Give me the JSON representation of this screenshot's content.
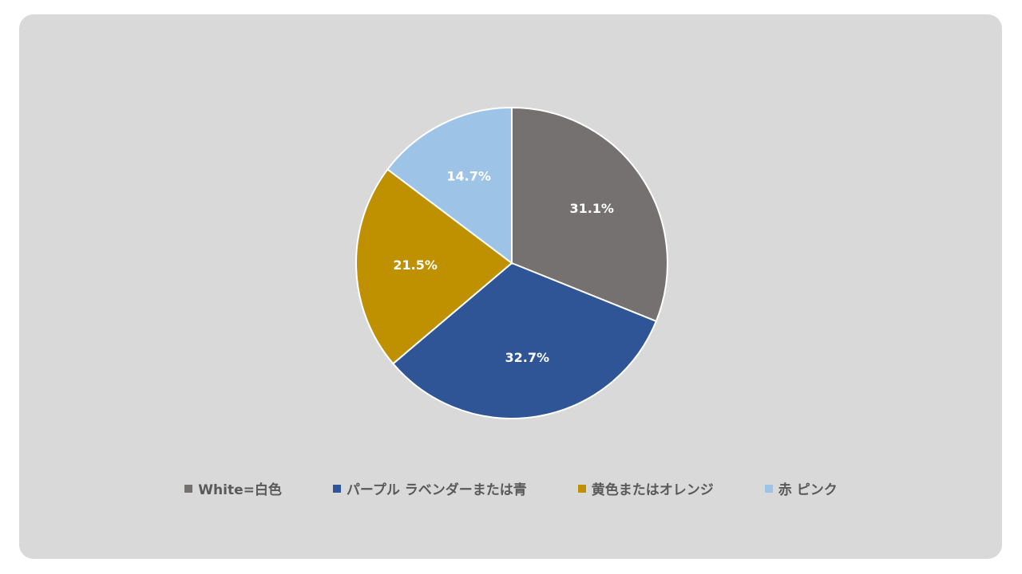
{
  "chart_data": {
    "type": "pie",
    "title": "",
    "start_angle_deg": 0,
    "direction": "clockwise",
    "label_format": "{v}%",
    "legend_position": "bottom",
    "slices": [
      {
        "label": "White=白色",
        "value": 31.1,
        "color": "#767171"
      },
      {
        "label": "パープル ラベンダーまたは青",
        "value": 32.7,
        "color": "#2f5597"
      },
      {
        "label": "黄色またはオレンジ",
        "value": 21.5,
        "color": "#bf9000"
      },
      {
        "label": "赤 ピンク",
        "value": 14.7,
        "color": "#9dc3e6"
      }
    ]
  }
}
